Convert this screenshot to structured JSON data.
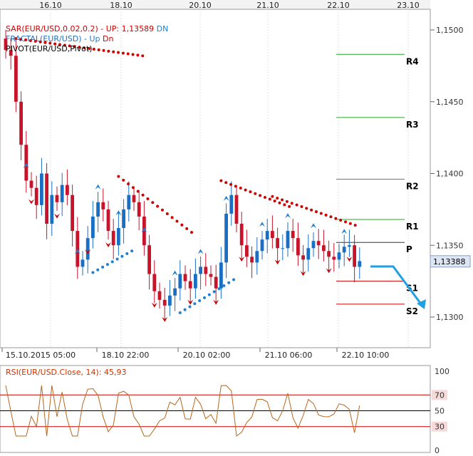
{
  "chart_data": {
    "type": "candlestick",
    "instrument": "EUR/USD",
    "top_dates": [
      "16.10",
      "18.10",
      "20.10",
      "21.10",
      "22.10",
      "23.10"
    ],
    "bottom_dates": [
      "15.10.2015 05:00",
      "18.10 22:00",
      "20.10 02:00",
      "21.10 06:00",
      "22.10 10:00"
    ],
    "price_ticks": [
      "1,1500",
      "1,1450",
      "1,1400",
      "1,1350",
      "1,1300"
    ],
    "price_range": [
      1.1285,
      1.1515
    ],
    "last_price": "1,13388",
    "legend": [
      {
        "text": "SAR(EUR/USD,0.02,0.2) -  UP: 1,13589",
        "extra": "DN",
        "color": "#cc0000",
        "extra_color": "#1f7fd1"
      },
      {
        "text": "FRACTAL(EUR/USD) -",
        "extra": "Up",
        "extra2": "Dn",
        "color": "#1f6fbf",
        "extra_color": "#1f7fd1",
        "extra2_color": "#cc0000"
      },
      {
        "text": "PIVOT(EUR/USD,Pivot)",
        "color": "#000000"
      }
    ],
    "pivot_levels": [
      {
        "label": "R4",
        "value": 1.1483,
        "color": "#27a827"
      },
      {
        "label": "R3",
        "value": 1.1439,
        "color": "#27a827"
      },
      {
        "label": "R2",
        "value": 1.1396,
        "color": "#27a827"
      },
      {
        "label": "R1",
        "value": 1.1368,
        "color": "#27a827"
      },
      {
        "label": "P",
        "value": 1.1352,
        "color": "#333333"
      },
      {
        "label": "S1",
        "value": 1.1325,
        "color": "#cc0000"
      },
      {
        "label": "S2",
        "value": 1.1309,
        "color": "#cc0000"
      }
    ],
    "closes": [
      1.1486,
      1.1482,
      1.145,
      1.142,
      1.1395,
      1.139,
      1.1378,
      1.14,
      1.1365,
      1.1385,
      1.138,
      1.1392,
      1.1385,
      1.136,
      1.1335,
      1.134,
      1.1355,
      1.137,
      1.138,
      1.1375,
      1.136,
      1.135,
      1.1362,
      1.1375,
      1.1385,
      1.138,
      1.137,
      1.135,
      1.133,
      1.1318,
      1.1312,
      1.1308,
      1.1315,
      1.132,
      1.133,
      1.1325,
      1.132,
      1.133,
      1.1335,
      1.133,
      1.1328,
      1.132,
      1.1338,
      1.1372,
      1.1385,
      1.1365,
      1.135,
      1.1342,
      1.1338,
      1.1346,
      1.1354,
      1.136,
      1.1355,
      1.1348,
      1.1348,
      1.136,
      1.1355,
      1.1343,
      1.134,
      1.1348,
      1.1353,
      1.135,
      1.1346,
      1.1342,
      1.134,
      1.1345,
      1.1349,
      1.135,
      1.1335,
      1.1339
    ],
    "sar_red_segments": [
      {
        "from": [
          1.149,
          1.1478
        ],
        "count": 27,
        "start": 2
      },
      {
        "from": [
          1.1394,
          1.1355
        ],
        "count": 16,
        "start": 22
      },
      {
        "from": [
          1.1391,
          1.1373
        ],
        "count": 15,
        "start": 42
      },
      {
        "from": [
          1.138,
          1.136
        ],
        "count": 18,
        "start": 52
      }
    ],
    "sar_blue_segments": [
      {
        "from": [
          1.1335,
          1.135
        ],
        "count": 9,
        "start": 17
      },
      {
        "from": [
          1.1307,
          1.133
        ],
        "count": 12,
        "start": 34
      }
    ],
    "rsi": {
      "label": "RSI(EUR/USD.Close, 14): 45,93",
      "levels": [
        "100",
        "70",
        "50",
        "30",
        "0"
      ],
      "value": 45.93,
      "overbought": 70,
      "oversold": 30
    }
  }
}
